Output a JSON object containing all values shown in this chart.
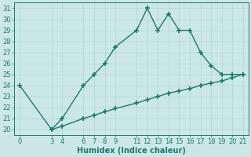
{
  "line1_x": [
    0,
    3,
    4,
    6,
    7,
    8,
    9,
    11,
    12,
    13,
    14,
    15,
    16,
    17,
    18,
    19,
    20,
    21
  ],
  "line1_y": [
    24,
    20,
    21,
    24,
    25,
    26,
    27.5,
    29,
    31,
    29,
    30.5,
    29,
    29,
    27,
    25.8,
    25,
    25,
    25
  ],
  "line2_x": [
    3,
    4,
    6,
    7,
    8,
    9,
    11,
    12,
    13,
    14,
    15,
    16,
    17,
    18,
    19,
    20,
    21
  ],
  "line2_y": [
    20,
    20.3,
    21.0,
    21.3,
    21.6,
    21.9,
    22.4,
    22.7,
    23.0,
    23.3,
    23.5,
    23.7,
    24.0,
    24.2,
    24.4,
    24.7,
    25.0
  ],
  "line_color": "#1a7a6e",
  "bg_color": "#cce8e6",
  "grid_color": "#b0d4d0",
  "xlabel": "Humidex (Indice chaleur)",
  "xticks": [
    0,
    3,
    4,
    6,
    7,
    8,
    9,
    11,
    12,
    13,
    14,
    15,
    16,
    17,
    18,
    19,
    20,
    21
  ],
  "yticks": [
    20,
    21,
    22,
    23,
    24,
    25,
    26,
    27,
    28,
    29,
    30,
    31
  ],
  "xlim": [
    -0.5,
    21.5
  ],
  "ylim": [
    19.5,
    31.5
  ],
  "marker": "+",
  "markersize": 5,
  "linewidth": 1.0,
  "xlabel_fontsize": 7,
  "tick_fontsize": 6,
  "figsize": [
    3.2,
    2.0
  ],
  "dpi": 100
}
